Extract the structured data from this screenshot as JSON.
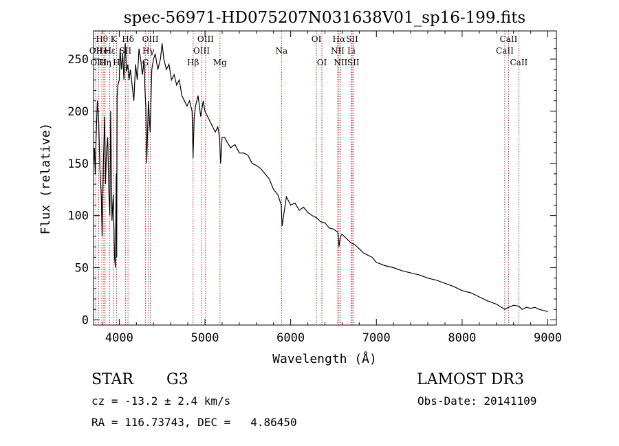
{
  "chart_data": {
    "type": "line",
    "title": "spec-56971-HD075207N031638V01_sp16-199.fits",
    "xlabel": "Wavelength (Å)",
    "ylabel": "Flux (relative)",
    "xlim": [
      3700,
      9100
    ],
    "ylim": [
      -5,
      277
    ],
    "xticks": [
      4000,
      5000,
      6000,
      7000,
      8000,
      9000
    ],
    "yticks": [
      0,
      50,
      100,
      150,
      200,
      250
    ],
    "series": [
      {
        "name": "flux",
        "x": [
          3700,
          3710,
          3720,
          3730,
          3745,
          3760,
          3775,
          3790,
          3800,
          3815,
          3830,
          3840,
          3850,
          3865,
          3880,
          3890,
          3900,
          3915,
          3930,
          3945,
          3955,
          3965,
          3970,
          3975,
          3985,
          4000,
          4010,
          4025,
          4040,
          4055,
          4070,
          4085,
          4100,
          4115,
          4130,
          4150,
          4170,
          4190,
          4210,
          4230,
          4250,
          4270,
          4290,
          4300,
          4310,
          4320,
          4340,
          4360,
          4380,
          4400,
          4420,
          4450,
          4480,
          4500,
          4520,
          4550,
          4580,
          4610,
          4640,
          4670,
          4700,
          4730,
          4760,
          4790,
          4820,
          4850,
          4861,
          4875,
          4890,
          4920,
          4950,
          4980,
          5000,
          5030,
          5060,
          5090,
          5120,
          5150,
          5170,
          5183,
          5200,
          5230,
          5260,
          5300,
          5350,
          5400,
          5450,
          5500,
          5550,
          5600,
          5650,
          5700,
          5750,
          5800,
          5850,
          5890,
          5900,
          5950,
          6000,
          6050,
          6100,
          6150,
          6200,
          6250,
          6300,
          6350,
          6400,
          6450,
          6500,
          6550,
          6563,
          6580,
          6600,
          6650,
          6700,
          6750,
          6800,
          6850,
          6900,
          6950,
          7000,
          7100,
          7200,
          7300,
          7400,
          7500,
          7600,
          7700,
          7800,
          7900,
          8000,
          8100,
          8200,
          8300,
          8400,
          8498,
          8542,
          8600,
          8662,
          8700,
          8750,
          8800,
          8850,
          8900,
          8950,
          9000
        ],
        "values": [
          150,
          165,
          140,
          175,
          210,
          190,
          145,
          120,
          80,
          150,
          195,
          130,
          160,
          175,
          120,
          100,
          200,
          95,
          120,
          60,
          50,
          140,
          60,
          215,
          225,
          230,
          260,
          240,
          255,
          230,
          265,
          238,
          245,
          230,
          240,
          225,
          210,
          245,
          230,
          260,
          250,
          235,
          248,
          220,
          205,
          150,
          210,
          180,
          240,
          250,
          255,
          240,
          250,
          265,
          250,
          240,
          245,
          230,
          235,
          225,
          230,
          215,
          210,
          205,
          210,
          200,
          155,
          195,
          205,
          215,
          195,
          210,
          200,
          195,
          190,
          185,
          180,
          185,
          175,
          150,
          175,
          175,
          170,
          165,
          168,
          160,
          160,
          158,
          150,
          148,
          145,
          140,
          135,
          125,
          120,
          110,
          90,
          118,
          110,
          112,
          105,
          108,
          103,
          100,
          98,
          94,
          93,
          88,
          87,
          84,
          70,
          80,
          82,
          78,
          74,
          72,
          68,
          64,
          62,
          60,
          55,
          52,
          50,
          47,
          45,
          43,
          40,
          38,
          35,
          32,
          28,
          26,
          22,
          18,
          15,
          10,
          12,
          14,
          13,
          10,
          12,
          11,
          12,
          10,
          9,
          8
        ]
      }
    ],
    "lines": [
      {
        "name": "Hθ",
        "wave": 3797,
        "row": 0
      },
      {
        "name": "OII",
        "wave": 3727,
        "row": 1
      },
      {
        "name": "OIII",
        "wave": 3759,
        "row": 2
      },
      {
        "name": "HeI",
        "wave": 3820,
        "row": 1
      },
      {
        "name": "Hη",
        "wave": 3835,
        "row": 2
      },
      {
        "name": "K",
        "wave": 3934,
        "row": 0
      },
      {
        "name": "H",
        "wave": 3968,
        "row": 2
      },
      {
        "name": "Hε",
        "wave": 3889,
        "row": 1
      },
      {
        "name": "SII",
        "wave": 4072,
        "row": 1
      },
      {
        "name": "Hδ",
        "wave": 4102,
        "row": 0
      },
      {
        "name": "OIII",
        "wave": 4363,
        "row": 0
      },
      {
        "name": "Hγ",
        "wave": 4340,
        "row": 1
      },
      {
        "name": "G",
        "wave": 4305,
        "row": 2
      },
      {
        "name": "Hβ",
        "wave": 4861,
        "row": 2
      },
      {
        "name": "OIII",
        "wave": 5007,
        "row": 0
      },
      {
        "name": "OIII",
        "wave": 4959,
        "row": 1
      },
      {
        "name": "Mg",
        "wave": 5175,
        "row": 2
      },
      {
        "name": "Na",
        "wave": 5893,
        "row": 1
      },
      {
        "name": "OI",
        "wave": 6300,
        "row": 0
      },
      {
        "name": "OI",
        "wave": 6364,
        "row": 2
      },
      {
        "name": "Hα",
        "wave": 6563,
        "row": 0
      },
      {
        "name": "NII",
        "wave": 6548,
        "row": 1
      },
      {
        "name": "NII",
        "wave": 6583,
        "row": 2
      },
      {
        "name": "SII",
        "wave": 6717,
        "row": 0
      },
      {
        "name": "Li",
        "wave": 6708,
        "row": 1
      },
      {
        "name": "SII",
        "wave": 6731,
        "row": 2
      },
      {
        "name": "CaII",
        "wave": 8542,
        "row": 0
      },
      {
        "name": "CaII",
        "wave": 8498,
        "row": 1
      },
      {
        "name": "CaII",
        "wave": 8662,
        "row": 2
      }
    ]
  },
  "info": {
    "object_type": "STAR",
    "subclass": "G3",
    "survey": "LAMOST DR3",
    "redshift": "cz = -13.2 ± 2.4 km/s",
    "obs_date": "Obs-Date: 20141109",
    "coords": "RA = 116.73743, DEC =   4.86450"
  }
}
